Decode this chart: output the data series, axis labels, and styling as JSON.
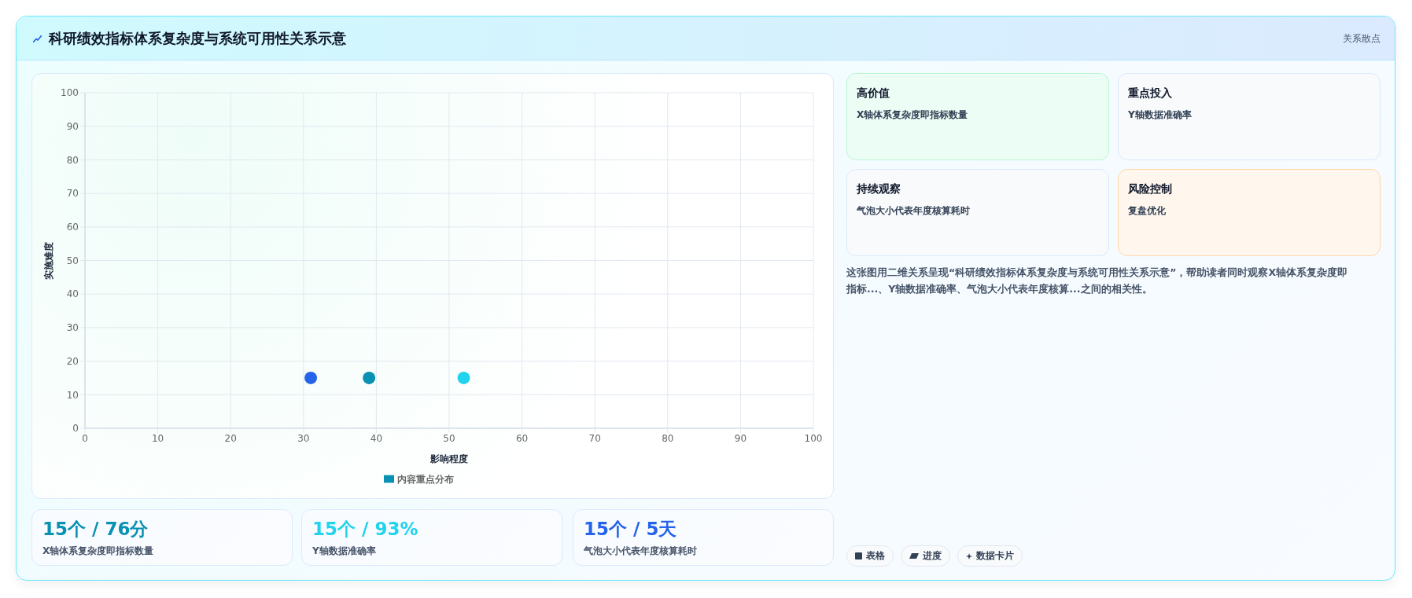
{
  "chart_data": {
    "type": "scatter",
    "title": "科研绩效指标体系复杂度与系统可用性关系示意",
    "subtitle": "关系散点",
    "xlabel": "影响程度",
    "ylabel": "实施难度",
    "x": [
      31,
      39,
      52
    ],
    "series": [
      {
        "name": "内容重点分布",
        "color": "#0891b2",
        "colors": [
          "#2563eb",
          "#0891b2",
          "#22d3ee"
        ],
        "values": [
          15,
          15,
          15
        ]
      }
    ],
    "xlim": [
      0,
      100
    ],
    "ylim": [
      0,
      100
    ],
    "xticks": [
      0,
      10,
      20,
      30,
      40,
      50,
      60,
      70,
      80,
      90,
      100
    ],
    "yticks": [
      0,
      10,
      20,
      30,
      40,
      50,
      60,
      70,
      80,
      90,
      100
    ],
    "grid": true,
    "legend": "bottom",
    "marker": "circle",
    "annotations": [
      "高价值",
      "X轴体系复杂度即指标数量",
      "重点投入",
      "Y轴数据准确率",
      "持续观察",
      "气泡大小代表年度核算耗时",
      "风险控制",
      "复盘优化",
      "这张图用二维关系呈现“科研绩效指标体系复杂度与系统可用性关系示意”，帮助读者同时观察X轴体系复杂度即指标...、Y轴数据准确率、气泡大小代表年度核算...之间的相关性。",
      "15个 / 76分",
      "X轴体系复杂度即指标数量",
      "15个 / 93%",
      "Y轴数据准确率",
      "15个 / 5天",
      "气泡大小代表年度核算耗时",
      "表格",
      "进度",
      "数据卡片"
    ]
  }
}
